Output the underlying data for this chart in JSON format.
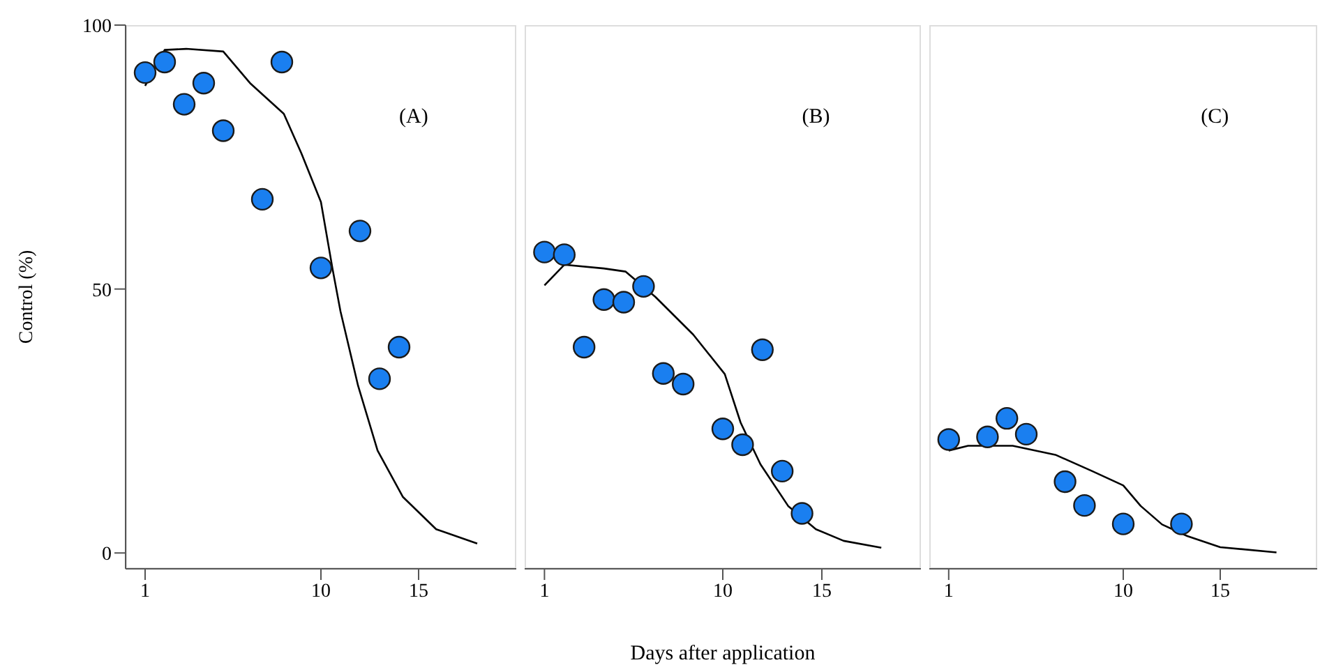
{
  "chart_data": [
    {
      "type": "scatter",
      "ylabel": "Control (%)",
      "annotations": [
        "(A)"
      ],
      "xlim": [
        0,
        20
      ],
      "xticks": [
        1,
        10,
        15
      ],
      "ylim": [
        -3,
        100
      ],
      "yticks": [
        0,
        50,
        100
      ],
      "legend": false,
      "grid": false,
      "series": [
        {
          "type": "scatter",
          "color": "#1a7ff0",
          "marker": "circle",
          "x": [
            1,
            2,
            3,
            4,
            5,
            7,
            8,
            10,
            12,
            13,
            14
          ],
          "values": [
            91,
            93,
            85,
            89,
            80,
            67,
            93,
            54,
            61,
            33,
            39
          ]
        },
        {
          "type": "line",
          "color": "#000000",
          "marker": "none",
          "x": [
            1,
            2,
            3.1,
            5,
            6.4,
            8.1,
            9,
            10,
            10.6,
            11,
            11.9,
            12.9,
            14.2,
            15.9,
            18
          ],
          "values": [
            88.5,
            95.3,
            95.5,
            95,
            88.9,
            83.2,
            75.7,
            66.5,
            53.7,
            45.8,
            31.7,
            19.4,
            10.6,
            4.5,
            1.8
          ]
        }
      ]
    },
    {
      "type": "scatter",
      "xlabel": "Days after application",
      "annotations": [
        "(B)"
      ],
      "xlim": [
        0,
        20
      ],
      "xticks": [
        1,
        10,
        15
      ],
      "ylim": [
        -3,
        100
      ],
      "yticks": [
        0,
        50,
        100
      ],
      "tick_labels": "x",
      "legend": false,
      "grid": false,
      "series": [
        {
          "type": "scatter",
          "color": "#1a7ff0",
          "marker": "circle",
          "x": [
            1,
            2,
            3,
            4,
            5,
            6,
            7,
            8,
            10,
            11,
            12,
            13,
            14
          ],
          "values": [
            57,
            56.5,
            39,
            48,
            47.5,
            50.5,
            34,
            32,
            23.5,
            20.5,
            38.5,
            15.5,
            7.5
          ]
        },
        {
          "type": "line",
          "color": "#000000",
          "marker": "none",
          "x": [
            1,
            2,
            4,
            5.1,
            6.6,
            8.5,
            10.1,
            10.9,
            11.9,
            13.3,
            14.7,
            16.1,
            18
          ],
          "values": [
            50.7,
            54.6,
            53.9,
            53.3,
            48.5,
            41.4,
            33.9,
            24.7,
            16.8,
            8.9,
            4.5,
            2.3,
            1
          ]
        }
      ]
    },
    {
      "type": "scatter",
      "annotations": [
        "(C)"
      ],
      "xlim": [
        0,
        20
      ],
      "xticks": [
        1,
        10,
        15
      ],
      "ylim": [
        -3,
        100
      ],
      "yticks": [
        0,
        50,
        100
      ],
      "tick_labels": "x",
      "legend": false,
      "grid": false,
      "series": [
        {
          "type": "scatter",
          "color": "#1a7ff0",
          "marker": "circle",
          "x": [
            1,
            3,
            4,
            5,
            7,
            8,
            10,
            13
          ],
          "values": [
            21.5,
            22,
            25.5,
            22.5,
            13.5,
            9,
            5.5,
            5.5
          ]
        },
        {
          "type": "line",
          "color": "#000000",
          "marker": "none",
          "x": [
            1,
            2,
            4.3,
            6.5,
            8.4,
            10,
            10.9,
            12,
            13.3,
            15,
            17.9
          ],
          "values": [
            19.4,
            20.3,
            20.3,
            18.6,
            15.5,
            12.8,
            8.9,
            5.4,
            3.2,
            1.1,
            0.1
          ]
        }
      ]
    }
  ]
}
